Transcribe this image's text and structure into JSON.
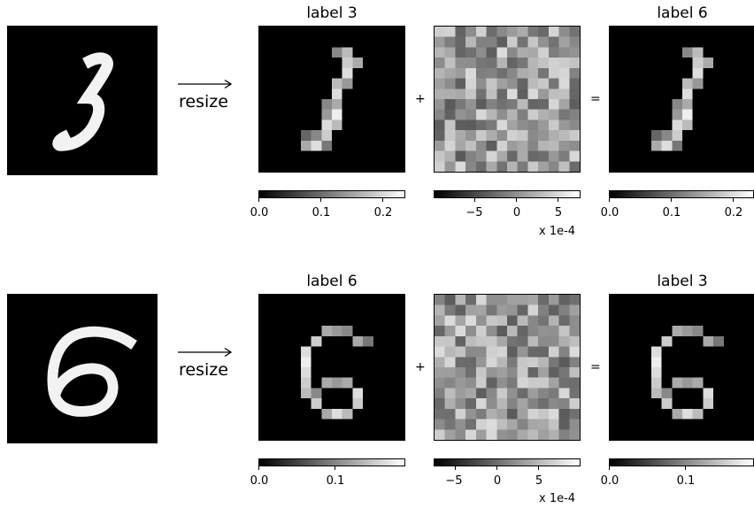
{
  "rows": [
    {
      "original_digit": "3",
      "resize_label": "resize",
      "plus": "+",
      "equals": "=",
      "left_title": "label 3",
      "right_title": "label 6",
      "cbar_left": [
        "0.0",
        "0.1",
        "0.2"
      ],
      "cbar_mid": [
        "−5",
        "0",
        "5"
      ],
      "cbar_right": [
        "0.0",
        "0.1",
        "0.2"
      ],
      "mid_scale": "x 1e-4"
    },
    {
      "original_digit": "6",
      "resize_label": "resize",
      "plus": "+",
      "equals": "=",
      "left_title": "label 6",
      "right_title": "label 3",
      "cbar_left": [
        "0.0",
        "0.1"
      ],
      "cbar_mid": [
        "−5",
        "0",
        "5"
      ],
      "cbar_right": [
        "0.0",
        "0.1"
      ],
      "mid_scale": "x 1e-4"
    }
  ],
  "colors": {
    "background": "#ffffff",
    "image_bg": "#000000",
    "digit": "#ffffff"
  }
}
